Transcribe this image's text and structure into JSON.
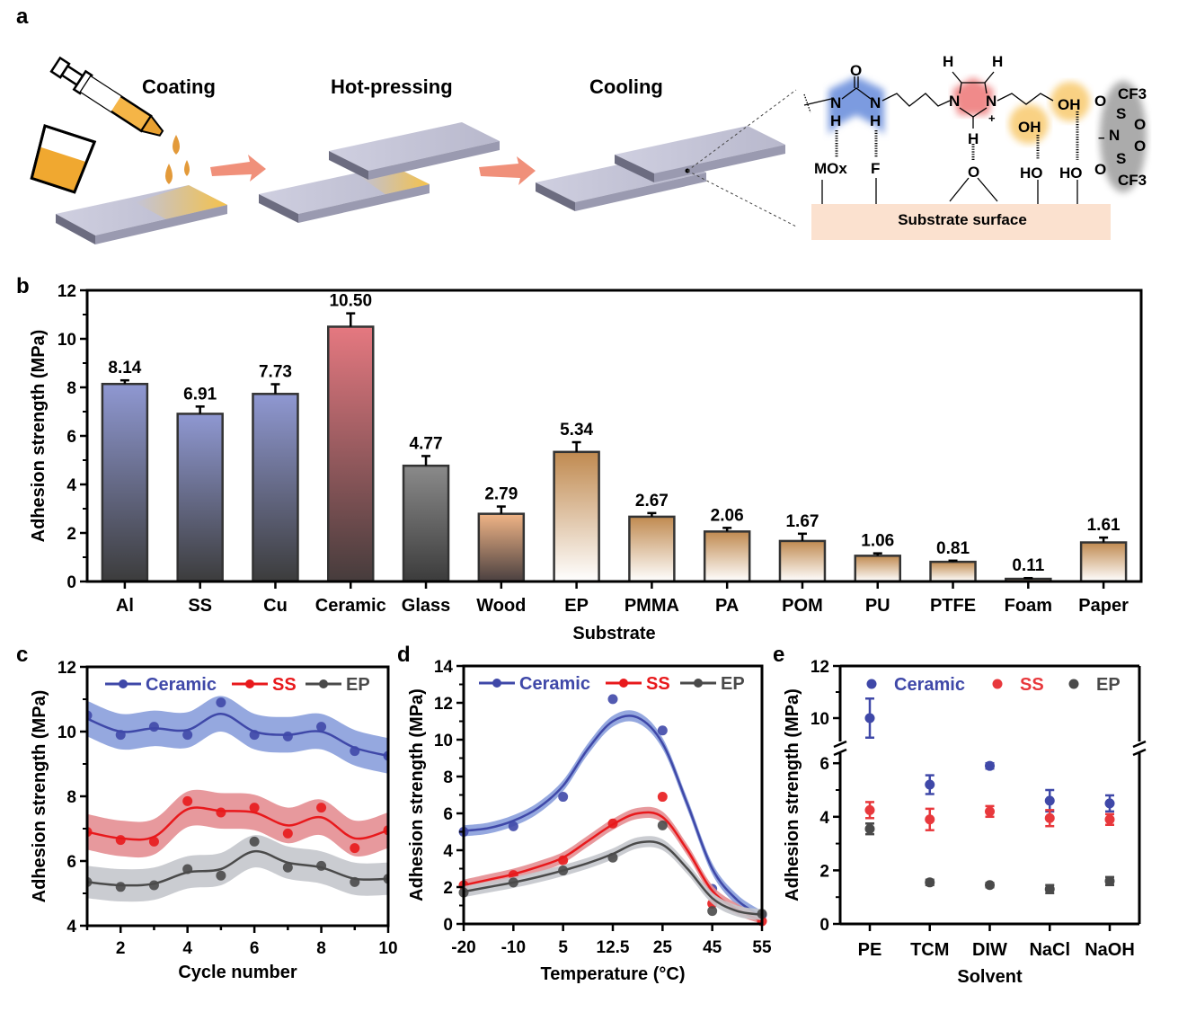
{
  "panel_a": {
    "letter": "a",
    "steps": [
      "Coating",
      "Hot-pressing",
      "Cooling"
    ],
    "chem": {
      "urea_O": "O",
      "urea_N1": "N",
      "urea_N2": "N",
      "urea_H1": "H",
      "urea_H2": "H",
      "im_N1": "N",
      "im_N2": "N",
      "im_H1": "H",
      "im_H2": "H",
      "im_H3": "H",
      "im_plus": "+",
      "oh1": "OH",
      "oh2": "OH",
      "s_mox": "MOx",
      "s_f": "F",
      "s_o": "O",
      "s_ho1": "HO",
      "s_ho2": "HO",
      "an_o1": "O",
      "an_cf3a": "CF3",
      "an_s1": "S",
      "an_o2": "O",
      "an_n": "N",
      "an_minus": "−",
      "an_o3": "O",
      "an_s2": "S",
      "an_o4": "O",
      "an_cf3b": "CF3",
      "substrate": "Substrate surface"
    },
    "colors": {
      "blue": "#7b9be0",
      "red": "#f08a8a",
      "yellow": "#f7c25a",
      "substrate": "#fbe1cf",
      "arrow": "#f0907a"
    }
  },
  "chart_data": [
    {
      "panel": "b",
      "type": "bar",
      "title": "",
      "xlabel": "Substrate",
      "ylabel": "Adhesion strength (MPa)",
      "ylim": [
        0,
        12
      ],
      "yticks": [
        0,
        2,
        4,
        6,
        8,
        10,
        12
      ],
      "categories": [
        "Al",
        "SS",
        "Cu",
        "Ceramic",
        "Glass",
        "Wood",
        "EP",
        "PMMA",
        "PA",
        "POM",
        "PU",
        "PTFE",
        "Foam",
        "Paper"
      ],
      "values": [
        8.14,
        6.91,
        7.73,
        10.5,
        4.77,
        2.79,
        5.34,
        2.67,
        2.06,
        1.67,
        1.06,
        0.81,
        0.11,
        1.61
      ],
      "value_labels": [
        "8.14",
        "6.91",
        "7.73",
        "10.50",
        "4.77",
        "2.79",
        "5.34",
        "2.67",
        "2.06",
        "1.67",
        "1.06",
        "0.81",
        "0.11",
        "1.61"
      ],
      "errors": [
        0.15,
        0.3,
        0.4,
        0.55,
        0.4,
        0.3,
        0.4,
        0.15,
        0.15,
        0.3,
        0.1,
        0.05,
        0.03,
        0.2
      ],
      "fill_top": [
        "#8f98d2",
        "#8f98d2",
        "#8f98d2",
        "#e57880",
        "#8a8a8a",
        "#f0b486",
        "#c08a50",
        "#c08a50",
        "#c08a50",
        "#c08a50",
        "#c08a50",
        "#c08a50",
        "#c08a50",
        "#c08a50"
      ],
      "fill_bottom": [
        "#3c3c3c",
        "#3c3c3c",
        "#3c3c3c",
        "#463c3c",
        "#3c3c3c",
        "#4a4040",
        "#ffffff",
        "#ffffff",
        "#ffffff",
        "#ffffff",
        "#ffffff",
        "#ffffff",
        "#ffffff",
        "#ffffff"
      ],
      "letter": "b"
    },
    {
      "panel": "c",
      "type": "line",
      "xlabel": "Cycle number",
      "ylabel": "Adhesion strength (MPa)",
      "xlim": [
        1,
        10
      ],
      "ylim": [
        4,
        12
      ],
      "xticks": [
        2,
        4,
        6,
        8,
        10
      ],
      "yticks": [
        4,
        6,
        8,
        10,
        12
      ],
      "x": [
        1,
        2,
        3,
        4,
        5,
        6,
        7,
        8,
        9,
        10
      ],
      "legend": "top",
      "series": [
        {
          "name": "Ceramic",
          "color": "#3f48a8",
          "band": "#8a9fdc",
          "values": [
            10.5,
            9.9,
            10.15,
            9.9,
            10.9,
            9.9,
            9.85,
            10.15,
            9.4,
            9.25
          ],
          "fit": [
            10.4,
            10.0,
            10.1,
            10.05,
            10.55,
            10.0,
            9.9,
            10.0,
            9.5,
            9.25
          ],
          "band_halfwidth": 0.55
        },
        {
          "name": "SS",
          "color": "#e8191c",
          "band": "#e48e92",
          "values": [
            6.9,
            6.65,
            6.6,
            7.85,
            7.5,
            7.65,
            6.85,
            7.65,
            6.4,
            6.95
          ],
          "fit": [
            6.9,
            6.7,
            6.75,
            7.6,
            7.55,
            7.5,
            7.1,
            7.35,
            6.7,
            6.95
          ],
          "band_halfwidth": 0.55
        },
        {
          "name": "EP",
          "color": "#4a4a4a",
          "band": "#c4c6cc",
          "values": [
            5.35,
            5.2,
            5.25,
            5.75,
            5.55,
            6.6,
            5.8,
            5.85,
            5.35,
            5.45
          ],
          "fit": [
            5.35,
            5.25,
            5.3,
            5.65,
            5.75,
            6.3,
            5.95,
            5.8,
            5.45,
            5.45
          ],
          "band_halfwidth": 0.5
        }
      ],
      "letter": "c"
    },
    {
      "panel": "d",
      "type": "line",
      "xlabel": "Temperature (°C)",
      "ylabel": "Adhesion strength (MPa)",
      "ylim": [
        0,
        14
      ],
      "yticks": [
        0,
        2,
        4,
        6,
        8,
        10,
        12,
        14
      ],
      "categories": [
        "-20",
        "-10",
        "5",
        "12.5",
        "25",
        "45",
        "55"
      ],
      "legend": "top",
      "series": [
        {
          "name": "Ceramic",
          "color": "#3f48a8",
          "band": "#8a9fdc",
          "values": [
            5.0,
            5.3,
            6.9,
            12.2,
            10.5,
            1.9,
            0.5
          ],
          "fit": [
            5.05,
            5.2,
            5.6,
            6.3,
            7.5,
            9.5,
            11.0,
            11.2,
            9.8,
            6.5,
            3.0,
            1.3,
            0.4
          ]
        },
        {
          "name": "SS",
          "color": "#e8191c",
          "band": "#e48e92",
          "values": [
            2.1,
            2.65,
            3.45,
            5.45,
            6.9,
            1.1,
            0.15
          ],
          "fit": [
            2.1,
            2.4,
            2.7,
            3.1,
            3.6,
            4.5,
            5.4,
            6.0,
            5.8,
            4.0,
            1.8,
            0.8,
            0.15
          ]
        },
        {
          "name": "EP",
          "color": "#4a4a4a",
          "band": "#c4c6cc",
          "values": [
            1.7,
            2.25,
            2.9,
            3.6,
            5.35,
            0.7,
            0.55
          ],
          "fit": [
            1.75,
            2.0,
            2.25,
            2.55,
            2.9,
            3.3,
            3.8,
            4.4,
            4.3,
            3.0,
            1.4,
            0.7,
            0.5
          ]
        }
      ],
      "letter": "d"
    },
    {
      "panel": "e",
      "type": "scatter",
      "xlabel": "Solvent",
      "ylabel": "Adhesion strength (MPa)",
      "ylim": [
        0,
        12
      ],
      "axis_break": [
        6.5,
        9
      ],
      "yticks": [
        0,
        2,
        4,
        6,
        10,
        12
      ],
      "categories": [
        "PE",
        "TCM",
        "DIW",
        "NaCl",
        "NaOH"
      ],
      "legend": "top",
      "series": [
        {
          "name": "Ceramic",
          "color": "#3f48a8",
          "values": [
            10.0,
            5.2,
            5.9,
            4.6,
            4.5
          ],
          "errors": [
            0.75,
            0.35,
            0.1,
            0.4,
            0.3
          ]
        },
        {
          "name": "SS",
          "color": "#e8383c",
          "values": [
            4.25,
            3.9,
            4.2,
            3.95,
            3.9
          ],
          "errors": [
            0.3,
            0.4,
            0.2,
            0.3,
            0.2
          ]
        },
        {
          "name": "EP",
          "color": "#4a4a4a",
          "values": [
            3.55,
            1.55,
            1.45,
            1.3,
            1.6
          ],
          "errors": [
            0.2,
            0.1,
            0.08,
            0.15,
            0.15
          ]
        }
      ],
      "letter": "e"
    }
  ]
}
